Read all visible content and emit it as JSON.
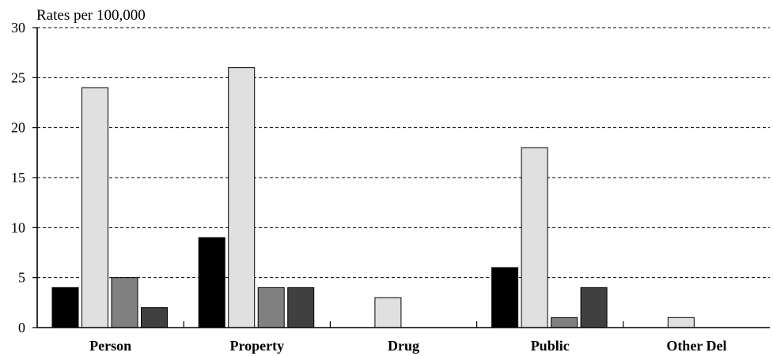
{
  "chart_data": {
    "type": "bar",
    "ylabel": "Rates per 100,000",
    "ylim": [
      0,
      30
    ],
    "yticks": [
      0,
      5,
      10,
      15,
      20,
      25,
      30
    ],
    "categories": [
      "Person",
      "Property",
      "Drug",
      "Public",
      "Other Del"
    ],
    "series": [
      {
        "values": [
          4,
          9,
          0,
          6,
          0
        ],
        "color": "#000000"
      },
      {
        "values": [
          24,
          26,
          3,
          18,
          1
        ],
        "color": "#e0e0e0"
      },
      {
        "values": [
          5,
          4,
          0,
          1,
          0
        ],
        "color": "#808080"
      },
      {
        "values": [
          2,
          4,
          0,
          4,
          0
        ],
        "color": "#404040"
      }
    ],
    "grid": "horizontal-dashed",
    "legend": "none"
  }
}
